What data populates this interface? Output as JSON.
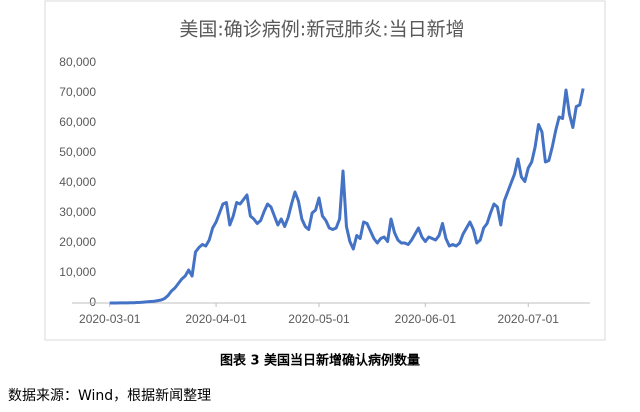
{
  "chart_data": {
    "type": "line",
    "title": "美国:确诊病例:新冠肺炎:当日新增",
    "color": "#4472c4",
    "x": [
      "2020-03-01",
      "2020-03-02",
      "2020-03-03",
      "2020-03-04",
      "2020-03-05",
      "2020-03-06",
      "2020-03-07",
      "2020-03-08",
      "2020-03-09",
      "2020-03-10",
      "2020-03-11",
      "2020-03-12",
      "2020-03-13",
      "2020-03-14",
      "2020-03-15",
      "2020-03-16",
      "2020-03-17",
      "2020-03-18",
      "2020-03-19",
      "2020-03-20",
      "2020-03-21",
      "2020-03-22",
      "2020-03-23",
      "2020-03-24",
      "2020-03-25",
      "2020-03-26",
      "2020-03-27",
      "2020-03-28",
      "2020-03-29",
      "2020-03-30",
      "2020-03-31",
      "2020-04-01",
      "2020-04-02",
      "2020-04-03",
      "2020-04-04",
      "2020-04-05",
      "2020-04-06",
      "2020-04-07",
      "2020-04-08",
      "2020-04-09",
      "2020-04-10",
      "2020-04-11",
      "2020-04-12",
      "2020-04-13",
      "2020-04-14",
      "2020-04-15",
      "2020-04-16",
      "2020-04-17",
      "2020-04-18",
      "2020-04-19",
      "2020-04-20",
      "2020-04-21",
      "2020-04-22",
      "2020-04-23",
      "2020-04-24",
      "2020-04-25",
      "2020-04-26",
      "2020-04-27",
      "2020-04-28",
      "2020-04-29",
      "2020-04-30",
      "2020-05-01",
      "2020-05-02",
      "2020-05-03",
      "2020-05-04",
      "2020-05-05",
      "2020-05-06",
      "2020-05-07",
      "2020-05-08",
      "2020-05-09",
      "2020-05-10",
      "2020-05-11",
      "2020-05-12",
      "2020-05-13",
      "2020-05-14",
      "2020-05-15",
      "2020-05-16",
      "2020-05-17",
      "2020-05-18",
      "2020-05-19",
      "2020-05-20",
      "2020-05-21",
      "2020-05-22",
      "2020-05-23",
      "2020-05-24",
      "2020-05-25",
      "2020-05-26",
      "2020-05-27",
      "2020-05-28",
      "2020-05-29",
      "2020-05-30",
      "2020-05-31",
      "2020-06-01",
      "2020-06-02",
      "2020-06-03",
      "2020-06-04",
      "2020-06-05",
      "2020-06-06",
      "2020-06-07",
      "2020-06-08",
      "2020-06-09",
      "2020-06-10",
      "2020-06-11",
      "2020-06-12",
      "2020-06-13",
      "2020-06-14",
      "2020-06-15",
      "2020-06-16",
      "2020-06-17",
      "2020-06-18",
      "2020-06-19",
      "2020-06-20",
      "2020-06-21",
      "2020-06-22",
      "2020-06-23",
      "2020-06-24",
      "2020-06-25",
      "2020-06-26",
      "2020-06-27",
      "2020-06-28",
      "2020-06-29",
      "2020-06-30",
      "2020-07-01",
      "2020-07-02",
      "2020-07-03",
      "2020-07-04",
      "2020-07-05",
      "2020-07-06",
      "2020-07-07",
      "2020-07-08",
      "2020-07-09",
      "2020-07-10",
      "2020-07-11",
      "2020-07-12",
      "2020-07-13",
      "2020-07-14",
      "2020-07-15",
      "2020-07-16",
      "2020-07-17"
    ],
    "values": [
      10,
      15,
      20,
      30,
      50,
      60,
      80,
      100,
      150,
      200,
      300,
      400,
      500,
      600,
      800,
      1000,
      1500,
      2500,
      4000,
      5000,
      6500,
      8000,
      9000,
      11000,
      9000,
      17000,
      18500,
      19500,
      19000,
      21000,
      25000,
      27000,
      30000,
      33000,
      33500,
      26000,
      29000,
      33500,
      33000,
      34500,
      36000,
      29000,
      28000,
      26500,
      27500,
      30500,
      33000,
      32000,
      29000,
      26000,
      28000,
      25500,
      28500,
      33000,
      37000,
      34000,
      28000,
      25500,
      24500,
      30000,
      31000,
      35000,
      29000,
      27500,
      25000,
      24500,
      25000,
      28000,
      44000,
      25500,
      20500,
      18000,
      22500,
      21500,
      27000,
      26500,
      24000,
      21500,
      20000,
      21500,
      22000,
      20500,
      28000,
      23500,
      21000,
      20000,
      20000,
      19500,
      21000,
      23000,
      25000,
      22000,
      20500,
      22000,
      21500,
      21000,
      22500,
      26500,
      21500,
      19000,
      19500,
      19000,
      20000,
      23000,
      25000,
      27000,
      24500,
      20000,
      21000,
      25000,
      26500,
      30000,
      33000,
      32000,
      26000,
      34000,
      37000,
      40000,
      43000,
      48000,
      42000,
      40500,
      45000,
      47000,
      52000,
      59500,
      57000,
      47000,
      47500,
      52000,
      57500,
      62000,
      61500,
      71000,
      63000,
      58500,
      65500,
      66000,
      71500
    ],
    "xlim": [
      "2020-02-19",
      "2020-07-19"
    ],
    "xticks": [
      "2020-03-01",
      "2020-04-01",
      "2020-05-01",
      "2020-06-01",
      "2020-07-01"
    ],
    "ylim": [
      0,
      80000
    ],
    "yticks": [
      0,
      {
        "value": 10000,
        "label": "10,000"
      },
      {
        "value": 20000,
        "label": "20,000"
      },
      {
        "value": 30000,
        "label": "30,000"
      },
      {
        "value": 40000,
        "label": "40,000"
      },
      {
        "value": 50000,
        "label": "50,000"
      },
      {
        "value": 60000,
        "label": "60,000"
      },
      {
        "value": 70000,
        "label": "70,000"
      },
      {
        "value": 80000,
        "label": "80,000"
      }
    ],
    "grid": false
  },
  "caption": "图表 3 美国当日新增确认病例数量",
  "source": "数据来源：Wind，根据新闻整理"
}
